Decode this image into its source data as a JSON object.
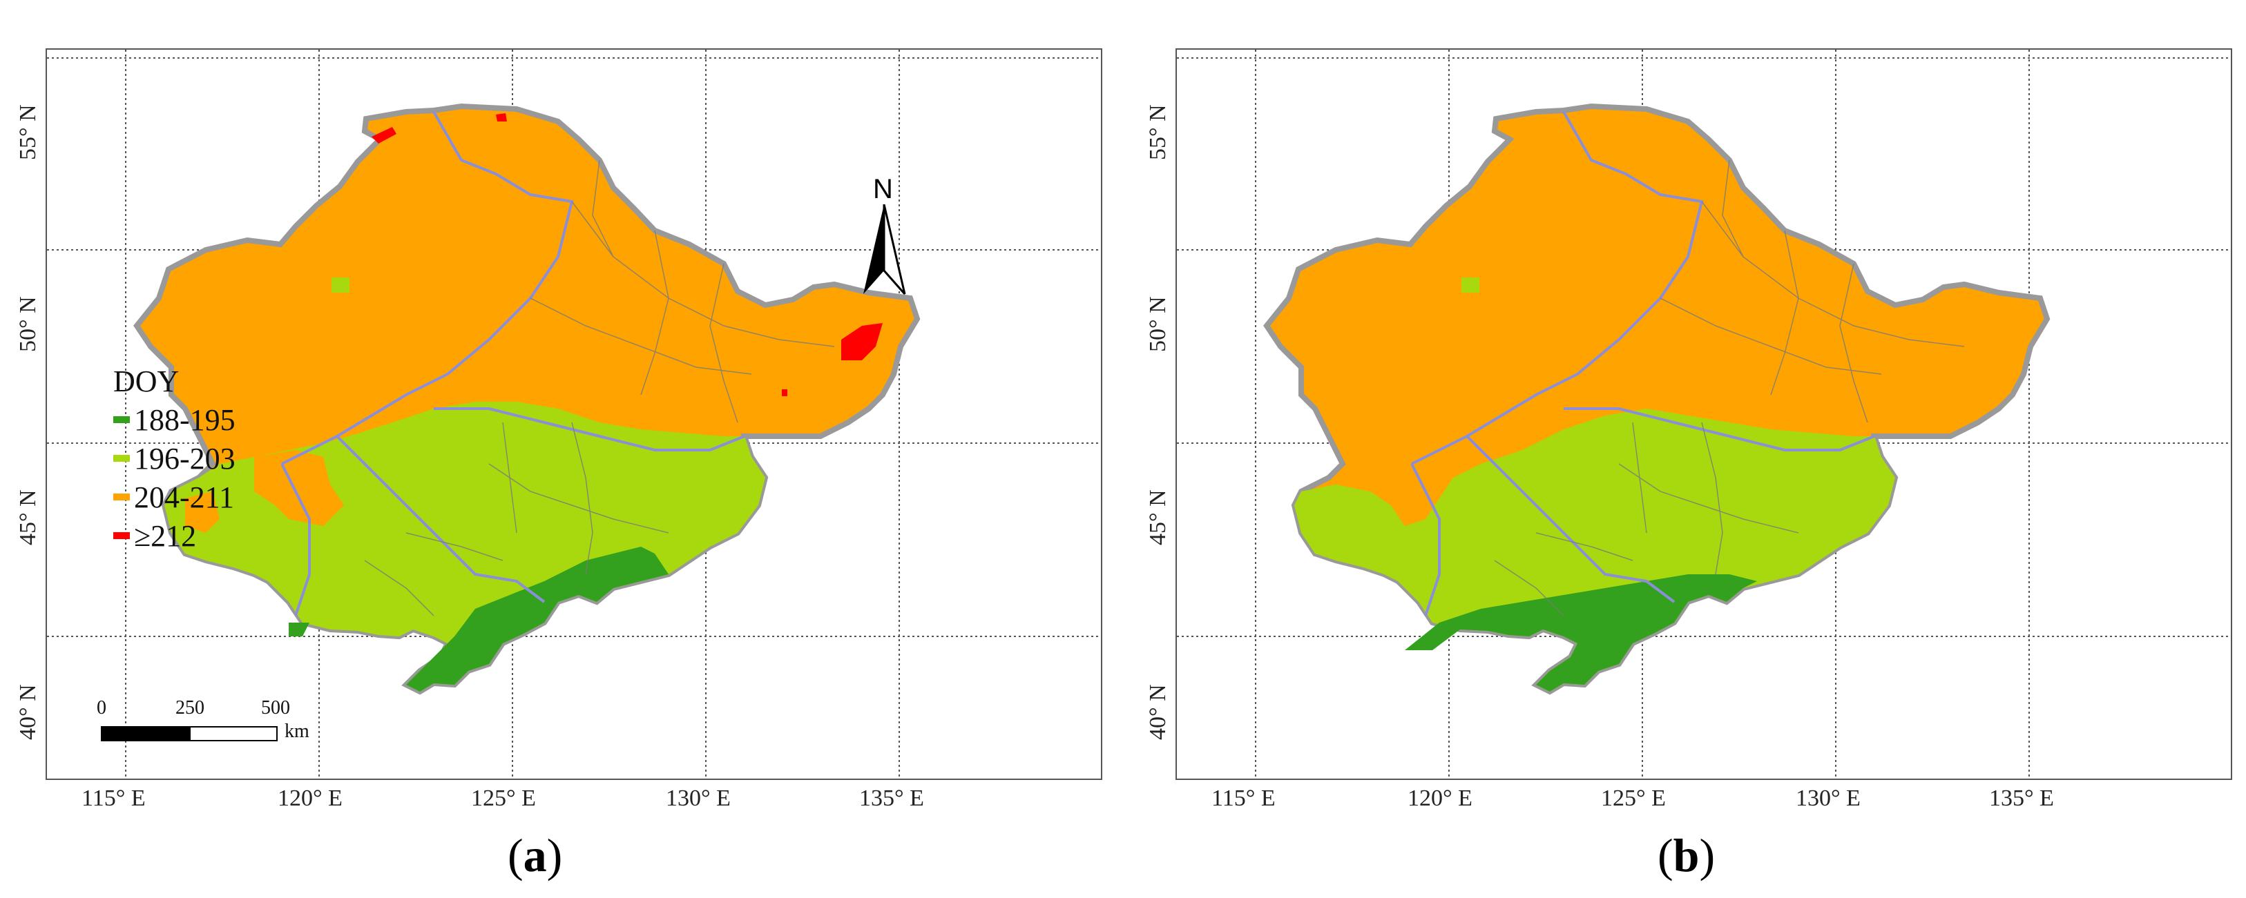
{
  "panels": [
    {
      "id": "a",
      "caption_prefix": "(",
      "caption_letter": "a",
      "caption_suffix": ")"
    },
    {
      "id": "b",
      "caption_prefix": "(",
      "caption_letter": "b",
      "caption_suffix": ")"
    }
  ],
  "axes": {
    "lon_labels": [
      "115° E",
      "120° E",
      "125° E",
      "130° E",
      "135° E"
    ],
    "lat_labels": [
      "40° N",
      "45° N",
      "50° N",
      "55° N"
    ]
  },
  "legend": {
    "title": "DOY",
    "classes": [
      {
        "label": "188-195",
        "color": "#33a11d"
      },
      {
        "label": "196-203",
        "color": "#a8d80e"
      },
      {
        "label": "204-211",
        "color": "#ffa300"
      },
      {
        "label": "≥212",
        "color": "#ff0000"
      }
    ]
  },
  "scale_bar": {
    "ticks": [
      "0",
      "250",
      "500"
    ],
    "unit": "km"
  },
  "north_arrow": {
    "letter": "N"
  }
}
